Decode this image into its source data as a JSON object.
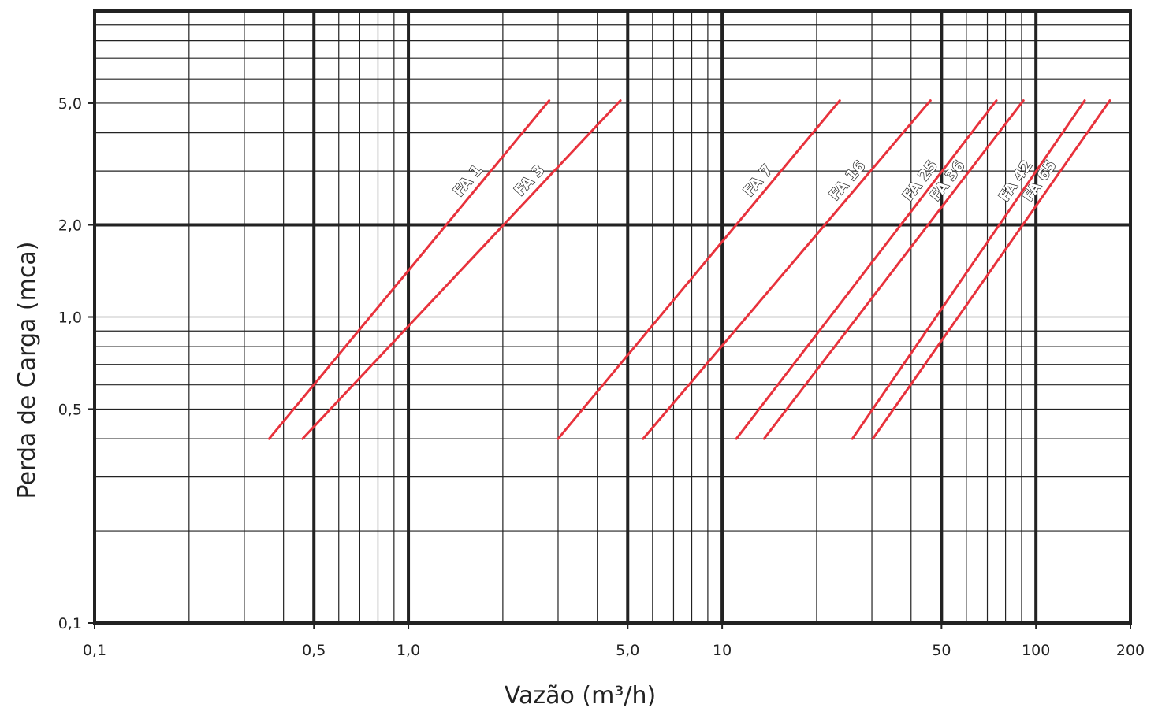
{
  "chart_data": {
    "type": "line",
    "xscale": "log",
    "yscale": "log",
    "xlabel": "Vazão (m³/h)",
    "ylabel": "Perda de Carga (mca)",
    "xlim": [
      0.1,
      200
    ],
    "ylim": [
      0.1,
      10
    ],
    "grid": true,
    "line_color": "#e8323c",
    "grid_color": "#222222",
    "x_ticks": [
      {
        "value": 0.1,
        "label": "0,1"
      },
      {
        "value": 0.5,
        "label": "0,5"
      },
      {
        "value": 1,
        "label": "1,0"
      },
      {
        "value": 5,
        "label": "5,0"
      },
      {
        "value": 10,
        "label": "10"
      },
      {
        "value": 50,
        "label": "50"
      },
      {
        "value": 100,
        "label": "100"
      },
      {
        "value": 200,
        "label": "200"
      }
    ],
    "y_ticks": [
      {
        "value": 0.1,
        "label": "0,1"
      },
      {
        "value": 0.5,
        "label": "0,5"
      },
      {
        "value": 1,
        "label": "1,0"
      },
      {
        "value": 2,
        "label": "2,0"
      },
      {
        "value": 5,
        "label": "5,0"
      }
    ],
    "series": [
      {
        "name": "FA 1",
        "x": [
          0.36,
          2.81
        ],
        "y": [
          0.4,
          5.1
        ]
      },
      {
        "name": "FA 3",
        "x": [
          0.46,
          4.74
        ],
        "y": [
          0.4,
          5.1
        ]
      },
      {
        "name": "FA 7",
        "x": [
          3.0,
          23.7
        ],
        "y": [
          0.4,
          5.1
        ]
      },
      {
        "name": "FA 16",
        "x": [
          5.6,
          46.1
        ],
        "y": [
          0.4,
          5.1
        ]
      },
      {
        "name": "FA 25",
        "x": [
          11.1,
          74.8
        ],
        "y": [
          0.4,
          5.1
        ]
      },
      {
        "name": "FA 36",
        "x": [
          13.6,
          91.2
        ],
        "y": [
          0.4,
          5.1
        ]
      },
      {
        "name": "FA 42",
        "x": [
          26.0,
          143.0
        ],
        "y": [
          0.4,
          5.1
        ]
      },
      {
        "name": "FA 65",
        "x": [
          30.2,
          172.0
        ],
        "y": [
          0.4,
          5.1
        ]
      }
    ]
  }
}
